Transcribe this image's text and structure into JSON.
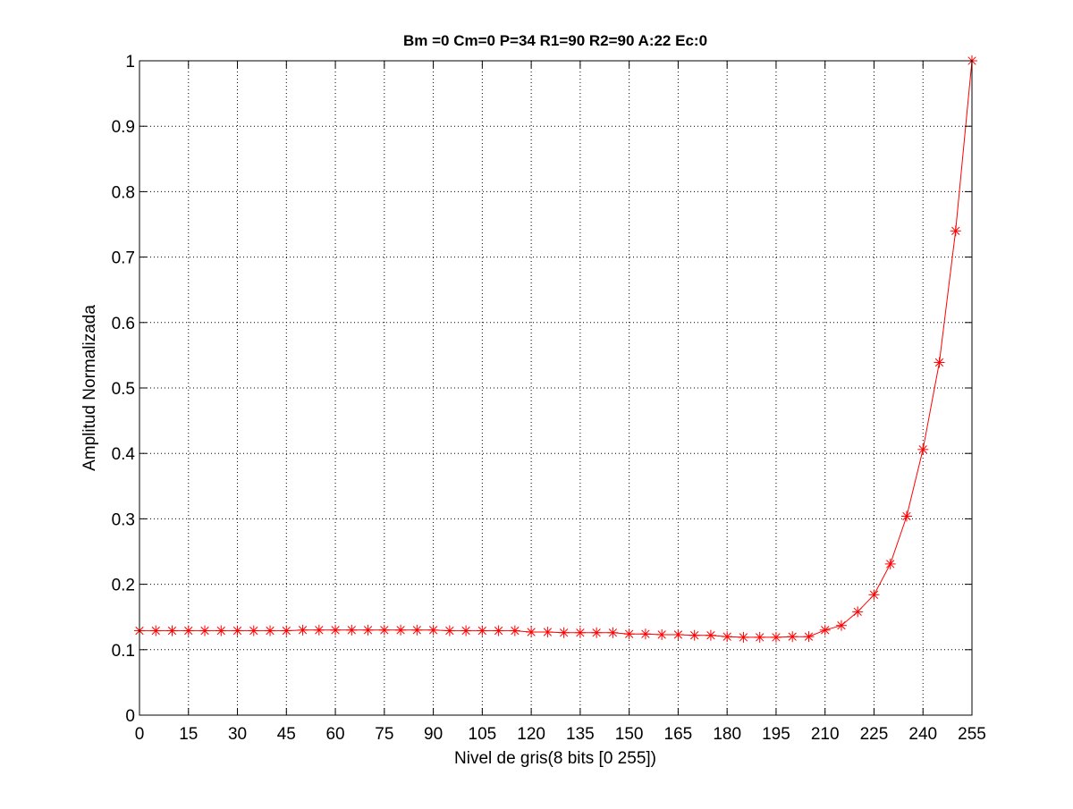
{
  "chart_data": {
    "type": "line",
    "title": "Bm =0  Cm=0  P=34  R1=90  R2=90  A:22  Ec:0",
    "xlabel": "Nivel de gris(8 bits [0 255])",
    "ylabel": "Amplitud Normalizada",
    "xlim": [
      0,
      255
    ],
    "ylim": [
      0,
      1
    ],
    "xticks": [
      0,
      15,
      30,
      45,
      60,
      75,
      90,
      105,
      120,
      135,
      150,
      165,
      180,
      195,
      210,
      225,
      240,
      255
    ],
    "yticks": [
      0,
      0.1,
      0.2,
      0.3,
      0.4,
      0.5,
      0.6,
      0.7,
      0.8,
      0.9,
      1
    ],
    "xtick_labels": [
      "0",
      "15",
      "30",
      "45",
      "60",
      "75",
      "90",
      "105",
      "120",
      "135",
      "150",
      "165",
      "180",
      "195",
      "210",
      "225",
      "240",
      "255"
    ],
    "ytick_labels": [
      "0",
      "0.1",
      "0.2",
      "0.3",
      "0.4",
      "0.5",
      "0.6",
      "0.7",
      "0.8",
      "0.9",
      "1"
    ],
    "grid": true,
    "grid_style": "dotted",
    "series": [
      {
        "color": "#ff0000",
        "marker": "asterisk",
        "x": [
          0,
          5,
          10,
          15,
          20,
          25,
          30,
          35,
          40,
          45,
          50,
          55,
          60,
          65,
          70,
          75,
          80,
          85,
          90,
          95,
          100,
          105,
          110,
          115,
          120,
          125,
          130,
          135,
          140,
          145,
          150,
          155,
          160,
          165,
          170,
          175,
          180,
          185,
          190,
          195,
          200,
          205,
          210,
          215,
          220,
          225,
          230,
          235,
          240,
          245,
          250,
          255
        ],
        "y": [
          0.129,
          0.129,
          0.129,
          0.129,
          0.129,
          0.129,
          0.129,
          0.129,
          0.129,
          0.129,
          0.13,
          0.13,
          0.13,
          0.13,
          0.13,
          0.13,
          0.13,
          0.13,
          0.13,
          0.129,
          0.129,
          0.129,
          0.129,
          0.129,
          0.127,
          0.127,
          0.126,
          0.126,
          0.126,
          0.126,
          0.124,
          0.124,
          0.123,
          0.123,
          0.122,
          0.122,
          0.12,
          0.119,
          0.119,
          0.119,
          0.12,
          0.12,
          0.13,
          0.137,
          0.158,
          0.184,
          0.231,
          0.304,
          0.406,
          0.539,
          0.74,
          1.0
        ]
      }
    ]
  }
}
